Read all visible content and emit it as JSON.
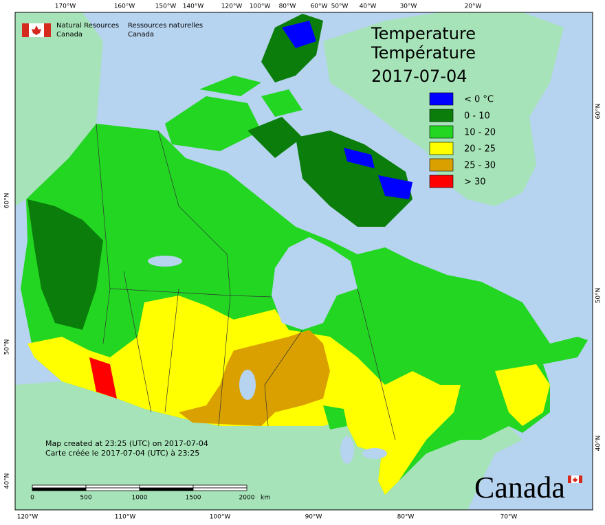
{
  "header": {
    "agency_en": [
      "Natural Resources",
      "Canada"
    ],
    "agency_fr": [
      "Ressources naturelles",
      "Canada"
    ]
  },
  "title": [
    "Temperature",
    "Température",
    "2017-07-04"
  ],
  "legend": [
    {
      "label": "< 0 °C",
      "color": "#0000ff"
    },
    {
      "label": "0 - 10",
      "color": "#0a7d0a"
    },
    {
      "label": "10 - 20",
      "color": "#22d622"
    },
    {
      "label": "20 - 25",
      "color": "#ffff00"
    },
    {
      "label": "25 - 30",
      "color": "#d9a000"
    },
    {
      "label": "> 30",
      "color": "#ff0000"
    }
  ],
  "top_longitudes": [
    "170°W",
    "160°W",
    "150°W",
    "140°W",
    "120°W",
    "100°W",
    "80°W",
    "60°W",
    "50°W",
    "40°W",
    "30°W",
    "20°W"
  ],
  "bottom_longitudes": [
    "120°W",
    "110°W",
    "100°W",
    "90°W",
    "80°W",
    "70°W"
  ],
  "left_latitudes": [
    "60°N",
    "50°N",
    "40°N"
  ],
  "right_latitudes": [
    "60°N",
    "50°N",
    "40°N"
  ],
  "credits": [
    "Map created at 23:25 (UTC) on 2017-07-04",
    "Carte créée le 2017-07-04 (UTC) à 23:25"
  ],
  "scale_bar": {
    "labels": [
      "0",
      "500",
      "1000",
      "1500",
      "2000"
    ],
    "unit": "km"
  },
  "wordmark": "Canada"
}
